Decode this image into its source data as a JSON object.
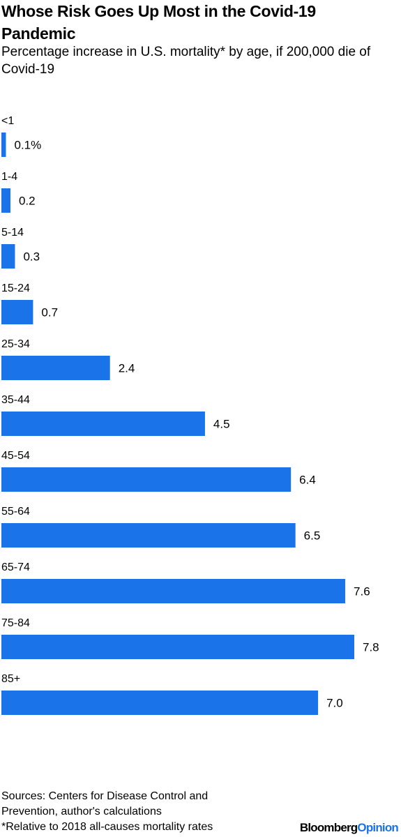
{
  "header": {
    "title": "Whose Risk Goes Up Most in the Covid-19 Pandemic",
    "subtitle": "Percentage increase in U.S. mortality* by age, if 200,000 die of Covid-19"
  },
  "chart_data": {
    "type": "bar",
    "orientation": "horizontal",
    "title": "Whose Risk Goes Up Most in the Covid-19 Pandemic",
    "subtitle": "Percentage increase in U.S. mortality* by age, if 200,000 die of Covid-19",
    "categories": [
      "<1",
      "1-4",
      "5-14",
      "15-24",
      "25-34",
      "35-44",
      "45-54",
      "55-64",
      "65-74",
      "75-84",
      "85+"
    ],
    "values": [
      0.1,
      0.2,
      0.3,
      0.7,
      2.4,
      4.5,
      6.4,
      6.5,
      7.6,
      7.8,
      7.0
    ],
    "value_labels": [
      "0.1%",
      "0.2",
      "0.3",
      "0.7",
      "2.4",
      "4.5",
      "6.4",
      "6.5",
      "7.6",
      "7.8",
      "7.0"
    ],
    "xlim": [
      0,
      7.8
    ],
    "grid": false,
    "legend": "none",
    "bar_color": "#1a73e8"
  },
  "footer": {
    "sources": "Sources: Centers for Disease Control and",
    "sources_cont": "Prevention, author's calculations",
    "note": "*Relative to 2018 all-causes mortality rates"
  },
  "logo": {
    "brand": "Bloomberg",
    "section": "Opinion"
  }
}
